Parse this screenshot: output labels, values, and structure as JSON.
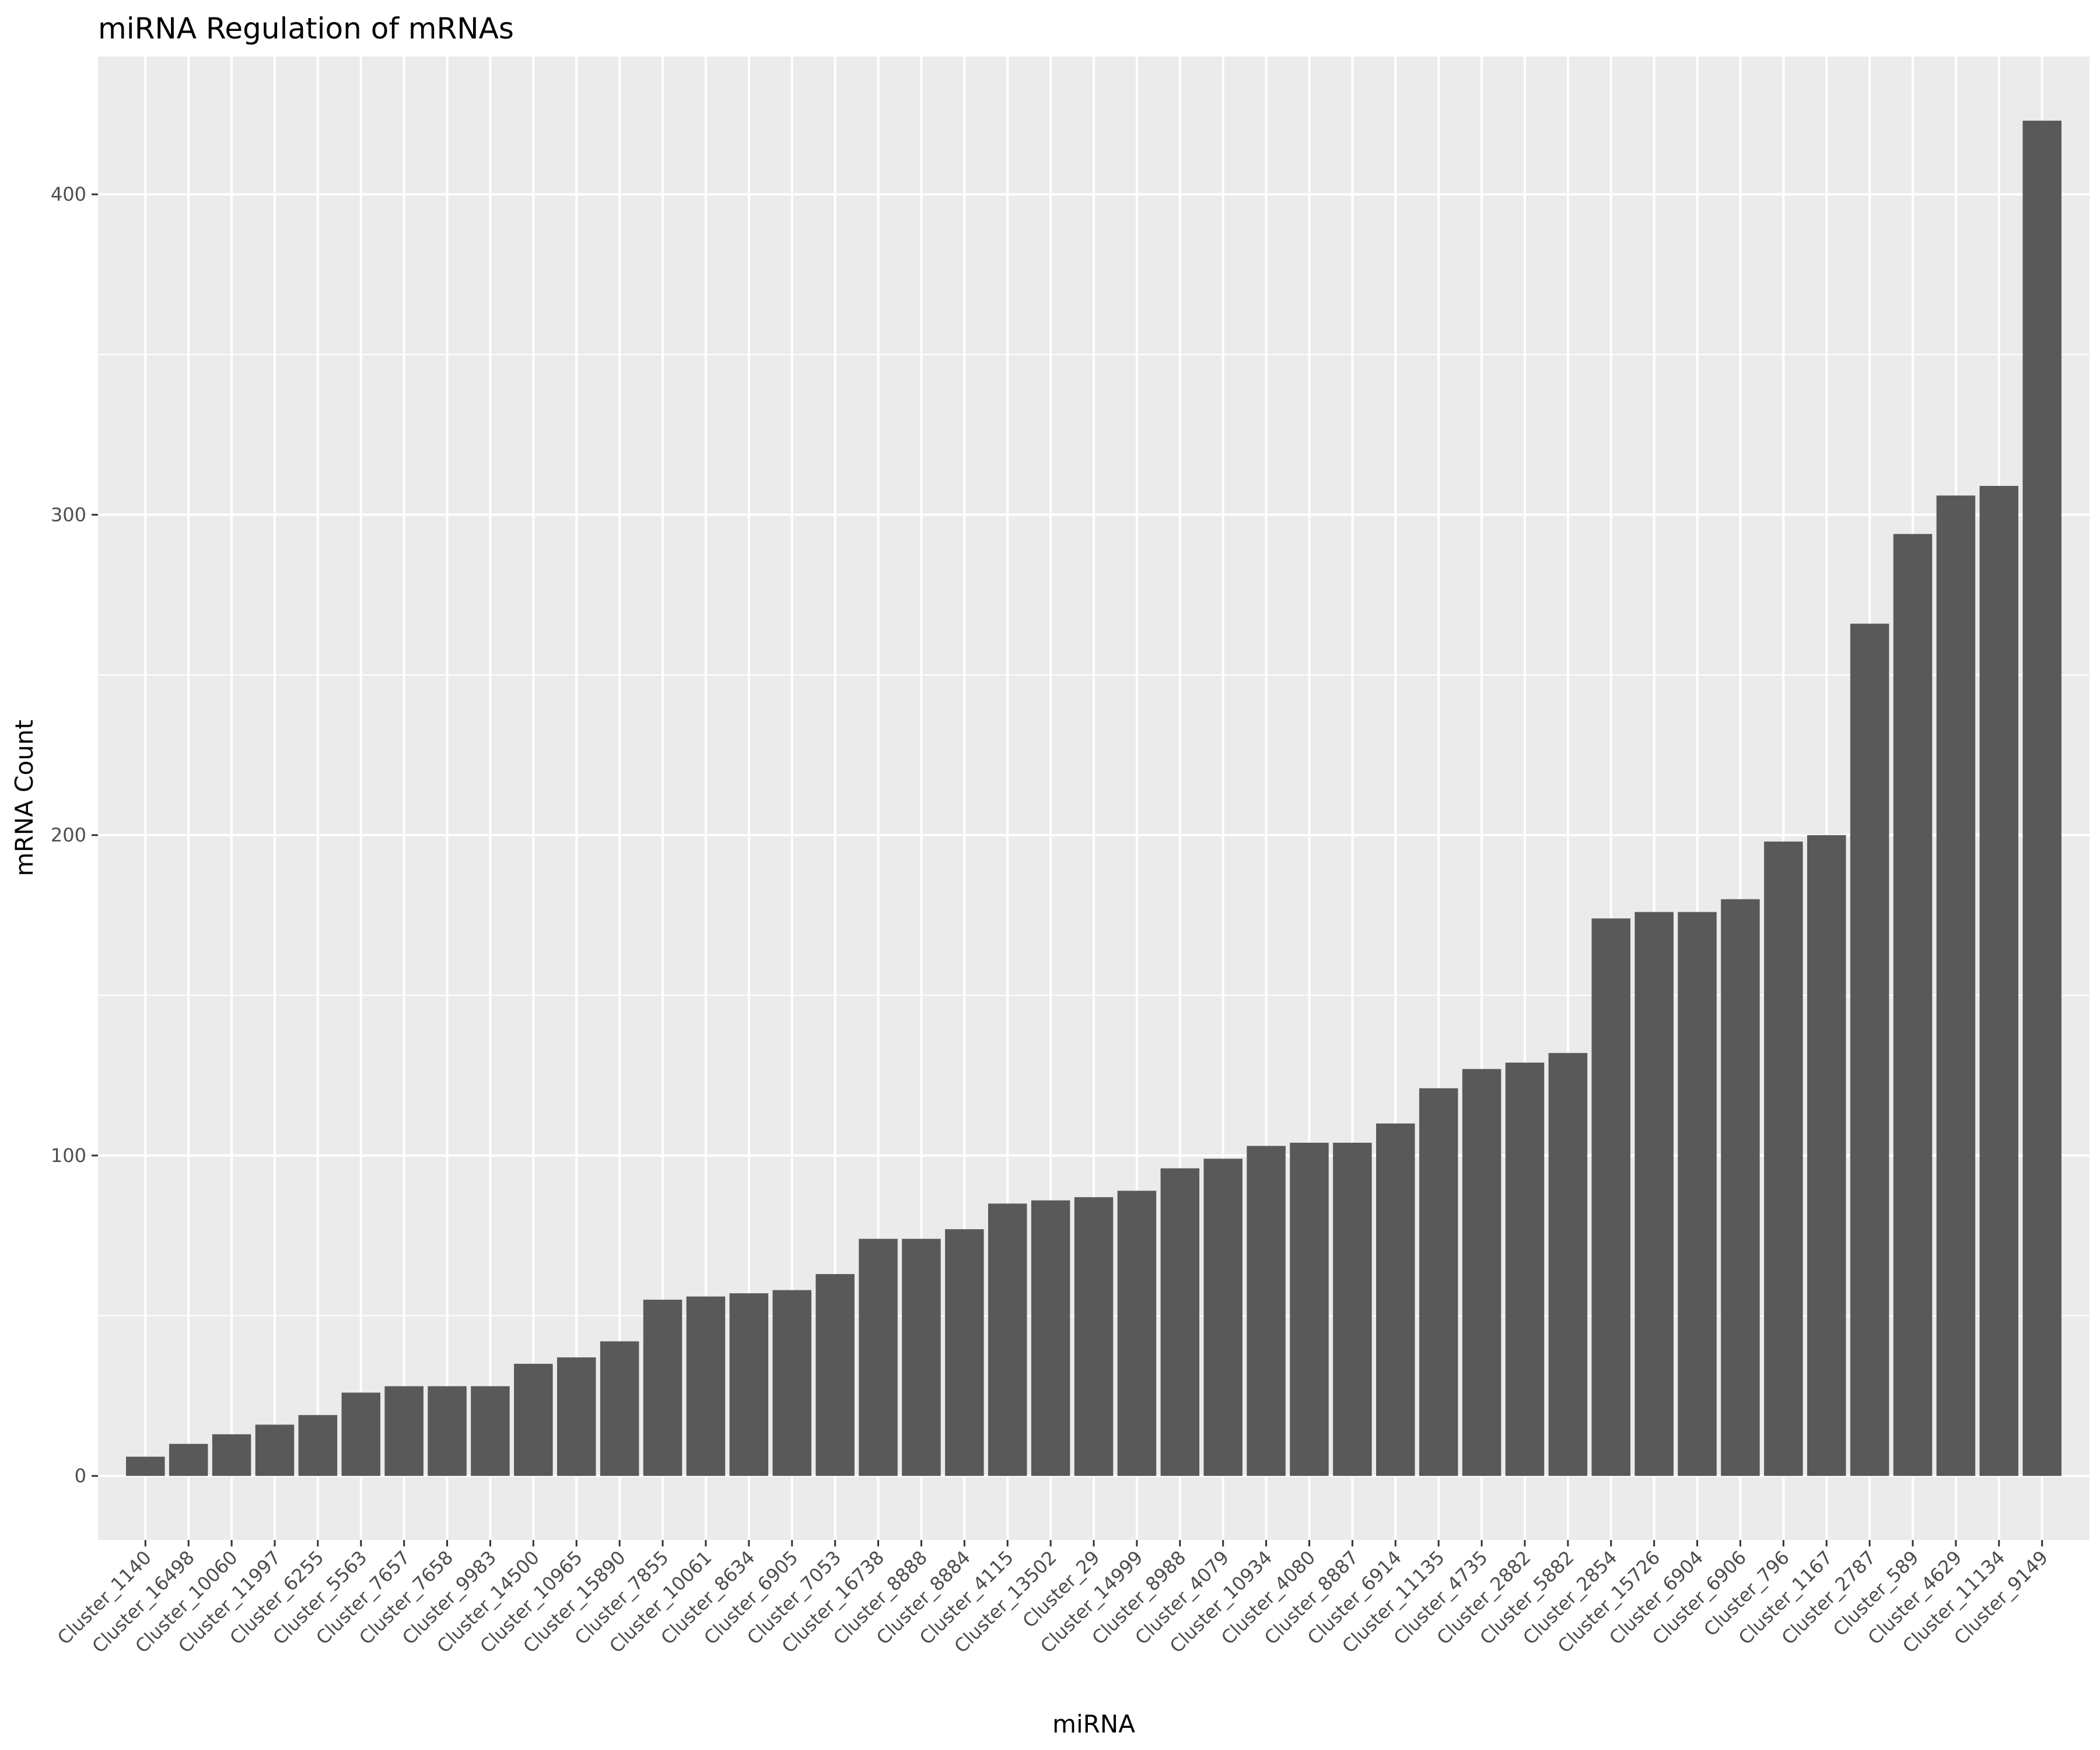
{
  "chart_data": {
    "type": "bar",
    "title": "miRNA Regulation of mRNAs",
    "xlabel": "miRNA",
    "ylabel": "mRNA Count",
    "ylim": [
      -20,
      443
    ],
    "yticks": [
      0,
      100,
      200,
      300,
      400
    ],
    "grid": true,
    "legend": "none",
    "colors": {
      "bar": "#595959",
      "panel": "#ebebeb",
      "grid": "#ffffff",
      "tick": "#333333"
    },
    "categories": [
      "Cluster_1140",
      "Cluster_16498",
      "Cluster_10060",
      "Cluster_11997",
      "Cluster_6255",
      "Cluster_5563",
      "Cluster_7657",
      "Cluster_7658",
      "Cluster_9983",
      "Cluster_14500",
      "Cluster_10965",
      "Cluster_15890",
      "Cluster_7855",
      "Cluster_10061",
      "Cluster_8634",
      "Cluster_6905",
      "Cluster_7053",
      "Cluster_16738",
      "Cluster_8888",
      "Cluster_8884",
      "Cluster_4115",
      "Cluster_13502",
      "Cluster_29",
      "Cluster_14999",
      "Cluster_8988",
      "Cluster_4079",
      "Cluster_10934",
      "Cluster_4080",
      "Cluster_8887",
      "Cluster_6914",
      "Cluster_11135",
      "Cluster_4735",
      "Cluster_2882",
      "Cluster_5882",
      "Cluster_2854",
      "Cluster_15726",
      "Cluster_6904",
      "Cluster_6906",
      "Cluster_796",
      "Cluster_1167",
      "Cluster_2787",
      "Cluster_589",
      "Cluster_4629",
      "Cluster_11134",
      "Cluster_9149"
    ],
    "values": [
      6,
      10,
      13,
      16,
      19,
      26,
      28,
      28,
      28,
      35,
      37,
      42,
      55,
      56,
      57,
      58,
      63,
      74,
      74,
      77,
      85,
      86,
      87,
      89,
      96,
      99,
      103,
      104,
      104,
      110,
      121,
      127,
      129,
      132,
      174,
      176,
      176,
      180,
      198,
      200,
      266,
      294,
      306,
      309,
      423
    ]
  }
}
